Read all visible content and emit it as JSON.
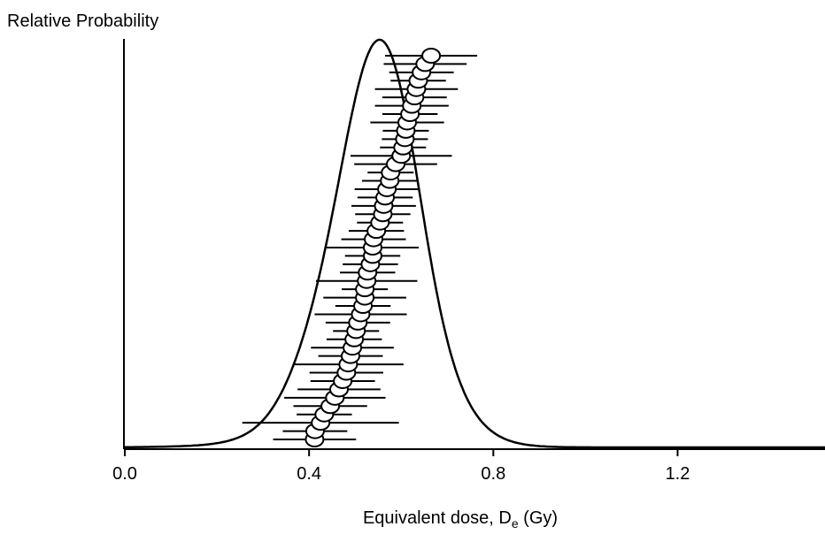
{
  "chart_data": {
    "type": "radial-density",
    "y_label": "Relative Probability",
    "x_label": {
      "text": "Equivalent dose, D",
      "subscript": "e",
      "suffix": " (Gy)"
    },
    "xlim": [
      0,
      1.52
    ],
    "xticks": [
      {
        "value": 0,
        "label": "0.0"
      },
      0.4,
      0.8,
      1.2
    ],
    "color": "#000000",
    "series": [
      {
        "values": [
          0.412,
          0.413,
          0.425,
          0.433,
          0.446,
          0.456,
          0.465,
          0.473,
          0.481,
          0.485,
          0.49,
          0.494,
          0.498,
          0.502,
          0.506,
          0.512,
          0.517,
          0.521,
          0.521,
          0.525,
          0.527,
          0.533,
          0.538,
          0.538,
          0.54,
          0.546,
          0.554,
          0.56,
          0.562,
          0.565,
          0.569,
          0.575,
          0.577,
          0.588,
          0.6,
          0.604,
          0.608,
          0.61,
          0.613,
          0.619,
          0.623,
          0.629,
          0.633,
          0.637,
          0.644,
          0.652,
          0.665
        ],
        "errors": [
          0.09,
          0.07,
          0.17,
          0.06,
          0.08,
          0.11,
          0.09,
          0.07,
          0.08,
          0.12,
          0.07,
          0.09,
          0.06,
          0.05,
          0.07,
          0.1,
          0.06,
          0.09,
          0.05,
          0.11,
          0.06,
          0.06,
          0.06,
          0.1,
          0.07,
          0.06,
          0.05,
          0.06,
          0.07,
          0.06,
          0.07,
          0.06,
          0.05,
          0.09,
          0.11,
          0.05,
          0.05,
          0.05,
          0.08,
          0.06,
          0.08,
          0.07,
          0.09,
          0.06,
          0.07,
          0.09,
          0.1
        ]
      }
    ]
  }
}
